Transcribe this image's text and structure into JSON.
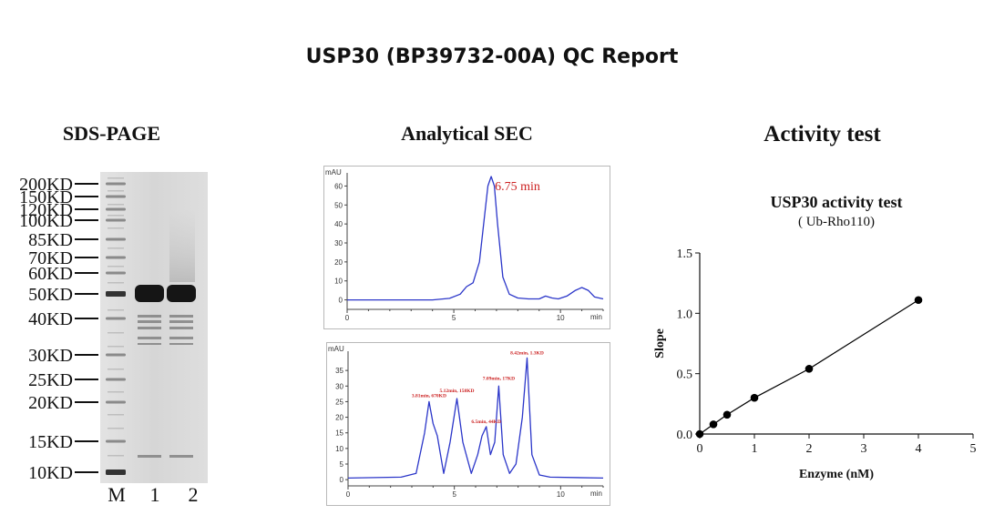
{
  "report_title": "USP30 (BP39732-00A) QC Report",
  "sds_page": {
    "title": "SDS-PAGE",
    "marker_labels": [
      "200KD",
      "150KD",
      "120KD",
      "100KD",
      "85KD",
      "70KD",
      "60KD",
      "50KD",
      "40KD",
      "30KD",
      "25KD",
      "20KD",
      "15KD",
      "10KD"
    ],
    "lane_labels": [
      "M",
      "1",
      "2"
    ]
  },
  "analytical_sec": {
    "title": "Analytical SEC",
    "colors": {
      "trace": "#2b36c9",
      "annotation": "#cc2222"
    }
  },
  "activity_test": {
    "title": "Activity test",
    "colors": {
      "line": "#000000",
      "point": "#000000"
    }
  },
  "chart_data": [
    {
      "type": "line",
      "ylabel": "mAU",
      "xlabel": "min",
      "xlim": [
        0,
        12
      ],
      "ylim": [
        -5,
        65
      ],
      "x_ticks": [
        0,
        5,
        10
      ],
      "y_ticks": [
        0,
        10,
        20,
        30,
        40,
        50,
        60
      ],
      "x": [
        0,
        4,
        4.8,
        5.3,
        5.6,
        5.9,
        6.2,
        6.45,
        6.6,
        6.75,
        6.9,
        7.05,
        7.3,
        7.6,
        8.0,
        8.5,
        9.0,
        9.3,
        9.6,
        9.9,
        10.3,
        10.7,
        11.0,
        11.3,
        11.6,
        12
      ],
      "y": [
        0,
        0,
        0.8,
        3,
        7,
        9,
        20,
        45,
        60,
        65,
        60,
        40,
        12,
        3,
        1,
        0.5,
        0.5,
        2,
        1,
        0.5,
        2,
        5,
        6.5,
        5,
        1.5,
        0.5
      ],
      "annotations": [
        {
          "x": 6.75,
          "y": 65,
          "text": "6.75 min"
        }
      ]
    },
    {
      "type": "line",
      "ylabel": "mAU",
      "xlabel": "min",
      "xlim": [
        0,
        12
      ],
      "ylim": [
        -2,
        40
      ],
      "x_ticks": [
        0,
        5,
        10
      ],
      "y_ticks": [
        0,
        5,
        10,
        15,
        20,
        25,
        30,
        35
      ],
      "x": [
        0,
        2.5,
        3.2,
        3.6,
        3.81,
        4.0,
        4.2,
        4.5,
        4.8,
        5.12,
        5.4,
        5.8,
        6.1,
        6.3,
        6.5,
        6.7,
        6.9,
        7.09,
        7.3,
        7.6,
        7.9,
        8.2,
        8.42,
        8.65,
        9.0,
        9.5,
        12
      ],
      "y": [
        0.5,
        0.8,
        2,
        15,
        25,
        18,
        14,
        2,
        12,
        26,
        12,
        2,
        8,
        14,
        17,
        8,
        12,
        30,
        8,
        2,
        5,
        20,
        39,
        8,
        1.5,
        0.8,
        0.5
      ],
      "annotations": [
        {
          "x": 3.81,
          "y": 25,
          "text": "3.81min, 670KD"
        },
        {
          "x": 5.12,
          "y": 26,
          "text": "5.12min, 158KD"
        },
        {
          "x": 6.5,
          "y": 17,
          "text": "6.5min, 44KD"
        },
        {
          "x": 7.09,
          "y": 30,
          "text": "7.09min, 17KD"
        },
        {
          "x": 8.42,
          "y": 39,
          "text": "8.42min, 1.3KD"
        }
      ]
    },
    {
      "type": "line",
      "title": "USP30 activity test",
      "subtitle": "( Ub-Rho110)",
      "xlabel": "Enzyme (nM)",
      "ylabel": "Slope",
      "xlim": [
        0,
        5
      ],
      "ylim": [
        0,
        1.5
      ],
      "x_ticks": [
        0,
        1,
        2,
        3,
        4,
        5
      ],
      "y_ticks": [
        0.0,
        0.5,
        1.0,
        1.5
      ],
      "x_tick_labels": [
        "0",
        "1",
        "2",
        "3",
        "4",
        "5"
      ],
      "y_tick_labels": [
        "0.0",
        "0.5",
        "1.0",
        "1.5"
      ],
      "x": [
        0,
        0.25,
        0.5,
        1,
        2,
        4
      ],
      "y": [
        0.0,
        0.08,
        0.16,
        0.3,
        0.54,
        1.11
      ]
    }
  ]
}
